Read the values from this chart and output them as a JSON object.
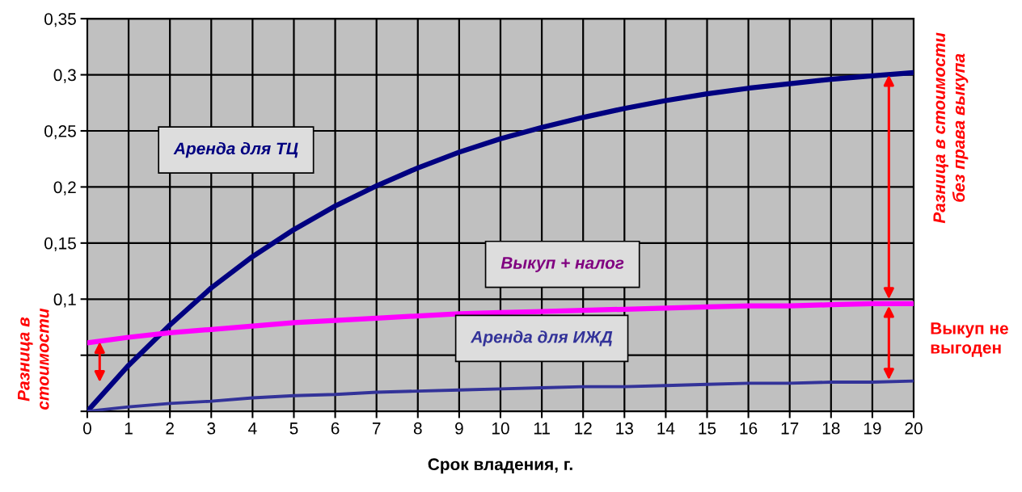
{
  "chart_data": {
    "type": "line",
    "xlabel": "Срок владения, г.",
    "x": [
      0,
      1,
      2,
      3,
      4,
      5,
      6,
      7,
      8,
      9,
      10,
      11,
      12,
      13,
      14,
      15,
      16,
      17,
      18,
      19,
      20
    ],
    "series": [
      {
        "name": "Аренда для ТЦ",
        "color": "#000080",
        "values": [
          0,
          0.041,
          0.077,
          0.11,
          0.138,
          0.162,
          0.183,
          0.201,
          0.217,
          0.231,
          0.243,
          0.253,
          0.262,
          0.27,
          0.277,
          0.283,
          0.288,
          0.292,
          0.296,
          0.299,
          0.302
        ]
      },
      {
        "name": "Выкуп + налог",
        "color": "#ff00ff",
        "values": [
          0.061,
          0.066,
          0.07,
          0.073,
          0.076,
          0.079,
          0.081,
          0.083,
          0.085,
          0.087,
          0.088,
          0.089,
          0.09,
          0.091,
          0.092,
          0.093,
          0.094,
          0.094,
          0.095,
          0.096,
          0.096
        ]
      },
      {
        "name": "Аренда для ИЖД",
        "color": "#333399",
        "values": [
          0,
          0.004,
          0.007,
          0.009,
          0.012,
          0.014,
          0.015,
          0.017,
          0.018,
          0.019,
          0.02,
          0.021,
          0.022,
          0.022,
          0.023,
          0.024,
          0.025,
          0.025,
          0.026,
          0.026,
          0.027
        ]
      }
    ],
    "xlim": [
      0,
      20
    ],
    "xticks": [
      0,
      1,
      2,
      3,
      4,
      5,
      6,
      7,
      8,
      9,
      10,
      11,
      12,
      13,
      14,
      15,
      16,
      17,
      18,
      19,
      20
    ],
    "ylim": [
      0,
      0.35
    ],
    "yticks": [
      {
        "value": 0,
        "label": null
      },
      {
        "value": 0.05,
        "label": null
      },
      {
        "value": 0.1,
        "label": "0,1"
      },
      {
        "value": 0.15,
        "label": "0,15"
      },
      {
        "value": 0.2,
        "label": "0,2"
      },
      {
        "value": 0.25,
        "label": "0,25"
      },
      {
        "value": 0.3,
        "label": "0,3"
      },
      {
        "value": 0.35,
        "label": "0,35"
      }
    ],
    "grid": true,
    "annotations": [
      "Разница в\nстоимости",
      "Разница в стоимости\nбез права выкупа",
      "Выкуп не\nвыгоден"
    ]
  }
}
